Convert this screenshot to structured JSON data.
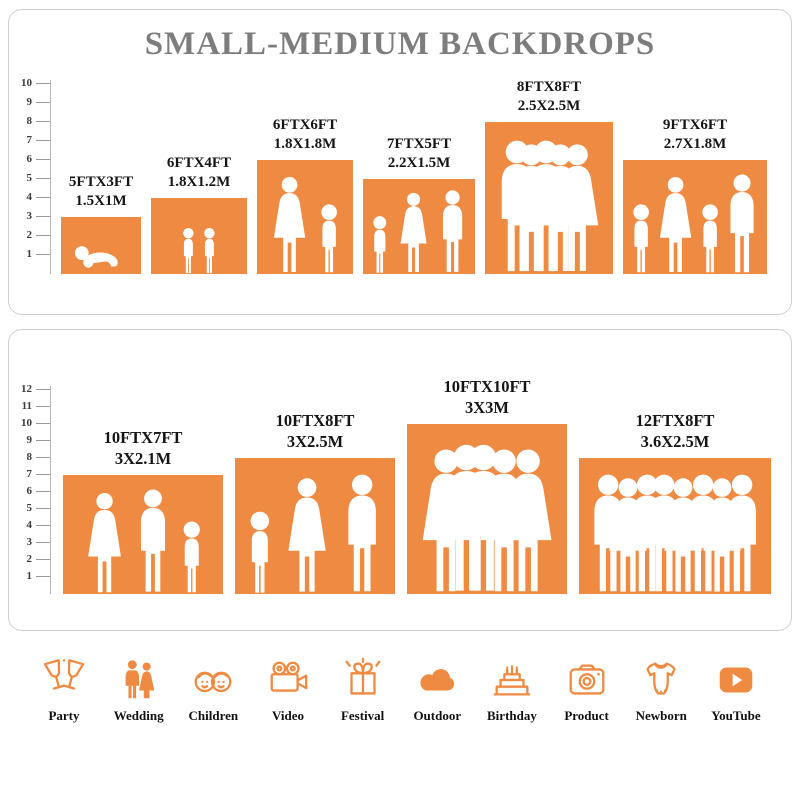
{
  "title": "SMALL-MEDIUM BACKDROPS",
  "theme": {
    "orange": "#EF8A42",
    "title_gray": "#7D7D7D"
  },
  "panels": [
    {
      "name": "small-medium",
      "ruler": {
        "max": 10
      },
      "items": [
        {
          "size_ft": "5FTX3FT",
          "size_m": "1.5X1M",
          "w_ft": 5,
          "h_ft": 3,
          "figures": [
            "baby"
          ]
        },
        {
          "size_ft": "6FTX4FT",
          "size_m": "1.8X1.2M",
          "w_ft": 6,
          "h_ft": 4,
          "figures": [
            "child",
            "child"
          ]
        },
        {
          "size_ft": "6FTX6FT",
          "size_m": "1.8X1.8M",
          "w_ft": 6,
          "h_ft": 6,
          "figures": [
            "female",
            "child"
          ]
        },
        {
          "size_ft": "7FTX5FT",
          "size_m": "2.2X1.5M",
          "w_ft": 7,
          "h_ft": 5,
          "figures": [
            "child",
            "female",
            "male"
          ]
        },
        {
          "size_ft": "8FTX8FT",
          "size_m": "2.5X2.5M",
          "w_ft": 8,
          "h_ft": 8,
          "figures": [
            "male",
            "female",
            "male",
            "female",
            "female"
          ]
        },
        {
          "size_ft": "9FTX6FT",
          "size_m": "2.7X1.8M",
          "w_ft": 9,
          "h_ft": 6,
          "figures": [
            "child",
            "female",
            "child",
            "male"
          ]
        }
      ]
    },
    {
      "name": "large",
      "ruler": {
        "max": 12
      },
      "items": [
        {
          "size_ft": "10FTX7FT",
          "size_m": "3X2.1M",
          "w_ft": 10,
          "h_ft": 7,
          "figures": [
            "female",
            "male",
            "child"
          ]
        },
        {
          "size_ft": "10FTX8FT",
          "size_m": "3X2.5M",
          "w_ft": 10,
          "h_ft": 8,
          "figures": [
            "child",
            "female",
            "male"
          ]
        },
        {
          "size_ft": "10FTX10FT",
          "size_m": "3X3M",
          "w_ft": 10,
          "h_ft": 10,
          "figures": [
            "female",
            "male",
            "male",
            "female",
            "female"
          ]
        },
        {
          "size_ft": "12FTX8FT",
          "size_m": "3.6X2.5M",
          "w_ft": 12,
          "h_ft": 8,
          "figures": [
            "male",
            "female",
            "male",
            "male",
            "female",
            "male",
            "female",
            "male"
          ]
        }
      ]
    }
  ],
  "categories": [
    {
      "label": "Party",
      "icon": "party-icon"
    },
    {
      "label": "Wedding",
      "icon": "wedding-icon"
    },
    {
      "label": "Children",
      "icon": "children-icon"
    },
    {
      "label": "Video",
      "icon": "video-icon"
    },
    {
      "label": "Festival",
      "icon": "festival-icon"
    },
    {
      "label": "Outdoor",
      "icon": "outdoor-icon"
    },
    {
      "label": "Birthday",
      "icon": "birthday-icon"
    },
    {
      "label": "Product",
      "icon": "product-icon"
    },
    {
      "label": "Newborn",
      "icon": "newborn-icon"
    },
    {
      "label": "YouTube",
      "icon": "youtube-icon"
    }
  ]
}
